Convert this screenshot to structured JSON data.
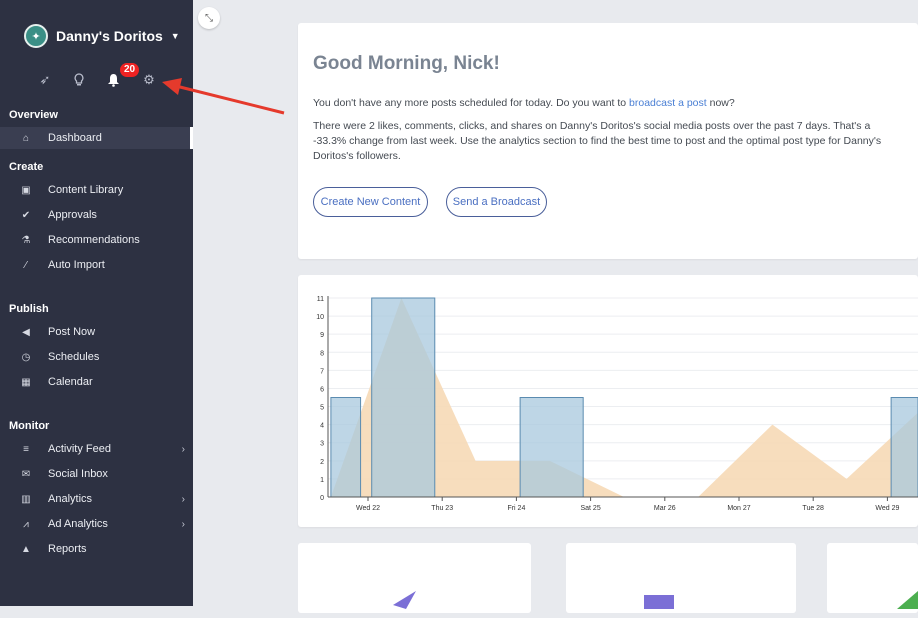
{
  "sidebar": {
    "brand_name": "Danny's Doritos",
    "notifications_count": "20",
    "sections": [
      {
        "title": "Overview",
        "items": [
          {
            "label": "Dashboard",
            "icon": "home-icon",
            "active": true
          }
        ]
      },
      {
        "title": "Create",
        "items": [
          {
            "label": "Content Library",
            "icon": "image-icon"
          },
          {
            "label": "Approvals",
            "icon": "check-circle-icon"
          },
          {
            "label": "Recommendations",
            "icon": "flask-icon"
          },
          {
            "label": "Auto Import",
            "icon": "magic-wand-icon"
          }
        ]
      },
      {
        "title": "Publish",
        "items": [
          {
            "label": "Post Now",
            "icon": "megaphone-icon"
          },
          {
            "label": "Schedules",
            "icon": "clock-icon"
          },
          {
            "label": "Calendar",
            "icon": "calendar-icon"
          }
        ]
      },
      {
        "title": "Monitor",
        "items": [
          {
            "label": "Activity Feed",
            "icon": "list-icon",
            "chevron": true
          },
          {
            "label": "Social Inbox",
            "icon": "inbox-icon"
          },
          {
            "label": "Analytics",
            "icon": "bar-chart-icon",
            "chevron": true
          },
          {
            "label": "Ad Analytics",
            "icon": "line-chart-icon",
            "chevron": true
          },
          {
            "label": "Reports",
            "icon": "area-chart-icon"
          }
        ]
      }
    ]
  },
  "welcome": {
    "greeting": "Good Morning, Nick!",
    "line1_prefix": "You don't have any more posts scheduled for today. Do you want to ",
    "line1_link": "broadcast a post",
    "line1_suffix": " now?",
    "line2": "There were 2 likes, comments, clicks, and shares on Danny's Doritos's social media posts over the past 7 days. That's a -33.3% change from last week. Use the analytics section to find the best time to post and the optimal post type for Danny's Doritos's followers.",
    "btn_create": "Create New Content",
    "btn_broadcast": "Send a Broadcast"
  },
  "chart_data": {
    "type": "bar",
    "categories": [
      "Wed 22",
      "Thu 23",
      "Fri 24",
      "Sat 25",
      "Mar 26",
      "Mon 27",
      "Tue 28",
      "Wed 29"
    ],
    "y_ticks": [
      "0",
      "1",
      "2",
      "3",
      "4",
      "5",
      "6",
      "7",
      "8",
      "9",
      "10",
      "11"
    ],
    "ylim": [
      0,
      11
    ],
    "bars": [
      {
        "x_start": -0.5,
        "x_end": -0.1,
        "value": 5.5
      },
      {
        "x_start": 0.05,
        "x_end": 0.9,
        "value": 11
      },
      {
        "x_start": 2.05,
        "x_end": 2.9,
        "value": 5.5
      },
      {
        "x_start": 7.05,
        "x_end": 7.5,
        "value": 5.5
      }
    ],
    "area": [
      [
        -0.5,
        0
      ],
      [
        0.45,
        11
      ],
      [
        1.45,
        2
      ],
      [
        2.45,
        2
      ],
      [
        3.45,
        0
      ],
      [
        4.45,
        0
      ],
      [
        5.45,
        4
      ],
      [
        6.45,
        1
      ],
      [
        7.5,
        5
      ]
    ],
    "bar_color": "#a8c8dd",
    "area_color": "#f6d9b6"
  }
}
